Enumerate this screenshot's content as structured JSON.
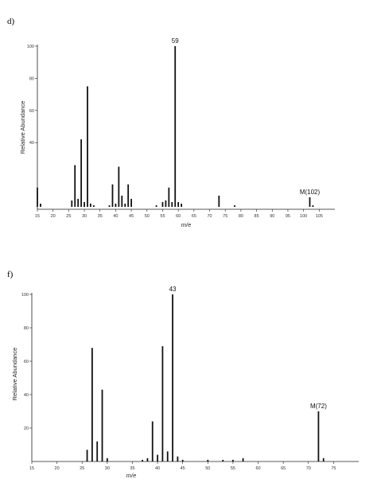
{
  "chart_data": [
    {
      "type": "bar",
      "panel_label": "d)",
      "xlabel": "m/e",
      "ylabel": "Relative Abundance",
      "xlim": [
        15,
        110
      ],
      "ylim": [
        0,
        100
      ],
      "x_ticks": [
        "15",
        "20",
        "25",
        "30",
        "35",
        "40",
        "45",
        "50",
        "55",
        "60",
        "65",
        "70",
        "75",
        "80",
        "85",
        "90",
        "95",
        "100",
        "105"
      ],
      "y_ticks": [
        "40",
        "60",
        "80",
        "100"
      ],
      "peaks": [
        {
          "x": 15,
          "y": 12
        },
        {
          "x": 16,
          "y": 2
        },
        {
          "x": 26,
          "y": 4
        },
        {
          "x": 27,
          "y": 26
        },
        {
          "x": 28,
          "y": 5
        },
        {
          "x": 29,
          "y": 42
        },
        {
          "x": 30,
          "y": 3
        },
        {
          "x": 31,
          "y": 75
        },
        {
          "x": 32,
          "y": 2
        },
        {
          "x": 33,
          "y": 1
        },
        {
          "x": 38,
          "y": 1
        },
        {
          "x": 39,
          "y": 14
        },
        {
          "x": 40,
          "y": 2
        },
        {
          "x": 41,
          "y": 25
        },
        {
          "x": 42,
          "y": 7
        },
        {
          "x": 43,
          "y": 2
        },
        {
          "x": 44,
          "y": 14
        },
        {
          "x": 45,
          "y": 5
        },
        {
          "x": 53,
          "y": 1
        },
        {
          "x": 55,
          "y": 3
        },
        {
          "x": 56,
          "y": 4
        },
        {
          "x": 57,
          "y": 12
        },
        {
          "x": 58,
          "y": 3
        },
        {
          "x": 59,
          "y": 100
        },
        {
          "x": 60,
          "y": 3
        },
        {
          "x": 61,
          "y": 2
        },
        {
          "x": 73,
          "y": 7
        },
        {
          "x": 78,
          "y": 1
        },
        {
          "x": 102,
          "y": 6
        },
        {
          "x": 103,
          "y": 1
        }
      ],
      "annotations": [
        {
          "text": "59",
          "x": 59
        },
        {
          "text": "M(102)",
          "x": 102
        }
      ]
    },
    {
      "type": "bar",
      "panel_label": "f)",
      "xlabel": "m/e",
      "ylabel": "Relative Abundance",
      "xlim": [
        15,
        80
      ],
      "ylim": [
        0,
        100
      ],
      "x_ticks": [
        "15",
        "20",
        "25",
        "30",
        "35",
        "40",
        "45",
        "50",
        "55",
        "60",
        "65",
        "70",
        "75"
      ],
      "y_ticks": [
        "20",
        "40",
        "60",
        "80",
        "100"
      ],
      "peaks": [
        {
          "x": 26,
          "y": 7
        },
        {
          "x": 27,
          "y": 68
        },
        {
          "x": 28,
          "y": 12
        },
        {
          "x": 29,
          "y": 43
        },
        {
          "x": 30,
          "y": 2
        },
        {
          "x": 37,
          "y": 1
        },
        {
          "x": 38,
          "y": 2
        },
        {
          "x": 39,
          "y": 24
        },
        {
          "x": 40,
          "y": 4
        },
        {
          "x": 41,
          "y": 69
        },
        {
          "x": 42,
          "y": 6
        },
        {
          "x": 43,
          "y": 100
        },
        {
          "x": 44,
          "y": 3
        },
        {
          "x": 45,
          "y": 1
        },
        {
          "x": 50,
          "y": 1
        },
        {
          "x": 53,
          "y": 1
        },
        {
          "x": 55,
          "y": 1
        },
        {
          "x": 57,
          "y": 2
        },
        {
          "x": 72,
          "y": 30
        },
        {
          "x": 73,
          "y": 2
        }
      ],
      "annotations": [
        {
          "text": "43",
          "x": 43
        },
        {
          "text": "M(72)",
          "x": 72
        }
      ]
    }
  ]
}
